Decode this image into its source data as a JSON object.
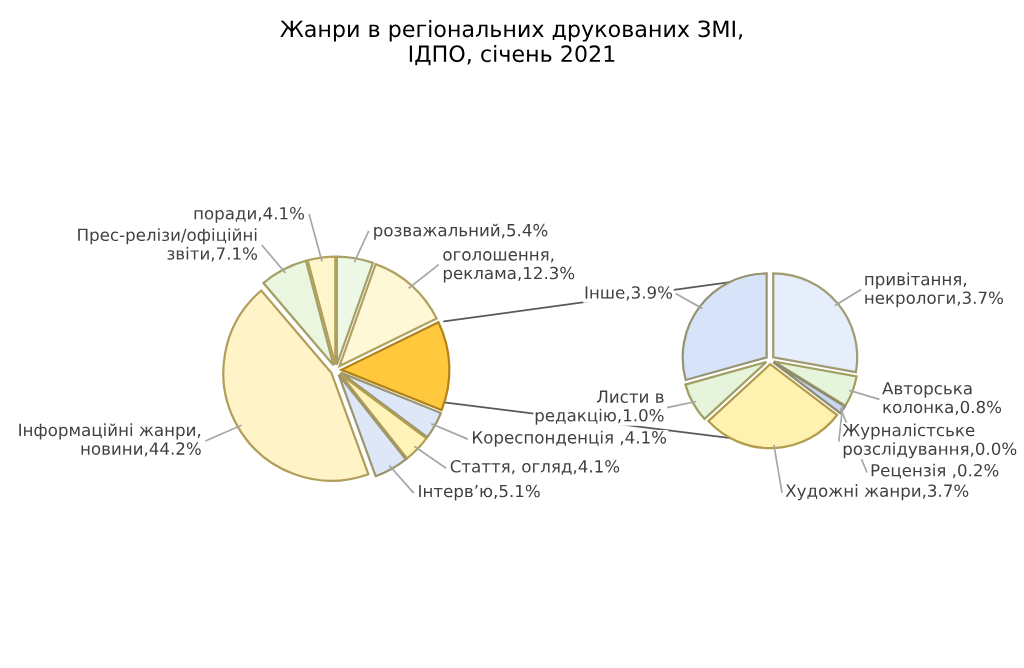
{
  "chart_data": [
    {
      "type": "pie",
      "title": "Жанри в регіональних друкованих ЗМІ,\nІДПО, січень 2021",
      "categories": [
        "розважальний",
        "оголошення, реклама",
        null,
        "Кореспонденція ",
        "Стаття, огляд",
        "Інтерв’ю",
        "Інформаційні жанри, новини",
        "Прес-релізи/офіційні звіти",
        "поради"
      ],
      "values": [
        5.4,
        12.3,
        13.3,
        4.1,
        4.1,
        5.1,
        44.2,
        7.1,
        4.1
      ],
      "value_labels": [
        "5.4%",
        "12.3%",
        null,
        "4.1%",
        "4.1%",
        "5.1%",
        "44.2%",
        "7.1%",
        "4.1%"
      ],
      "colors": [
        "#eef8e6",
        "#fff8d6",
        "#ffc83d",
        "#dde7f7",
        "#fff3b8",
        "#dde7f7",
        "#fff3c8",
        "#eaf6e0",
        "#fff6cc"
      ]
    },
    {
      "type": "pie",
      "categories": [
        "привітання, некрологи",
        "Авторська колонка",
        "Журналістське розслідування",
        "Рецензія ",
        "Художні жанри",
        "Листи в редакцію",
        "Інше"
      ],
      "values": [
        3.7,
        0.8,
        0.0,
        0.2,
        3.7,
        1.0,
        3.9
      ],
      "value_labels": [
        "3.7%",
        "0.8%",
        "0.0%",
        "0.2%",
        "3.7%",
        "1.0%",
        "3.9%"
      ],
      "colors": [
        "#e6eefb",
        "#e6f4dc",
        "#dde7f7",
        "#c9d8f2",
        "#fff2b0",
        "#e6f4dc",
        "#d6e3f8"
      ]
    }
  ]
}
